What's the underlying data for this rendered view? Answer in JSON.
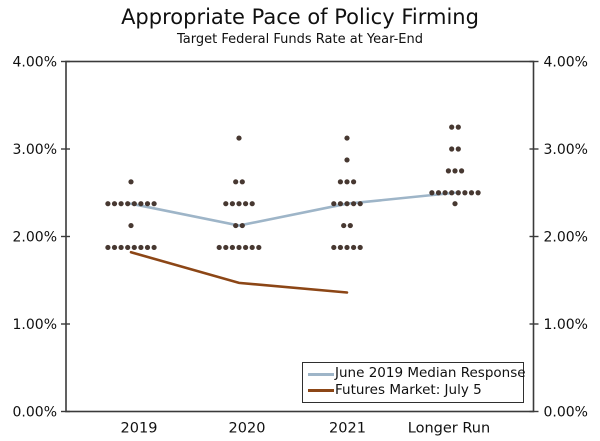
{
  "chart_data": {
    "type": "scatter",
    "title": "Appropriate Pace of Policy Firming",
    "subtitle": "Target Federal Funds Rate at Year-End",
    "categories": [
      "2019",
      "2020",
      "2021",
      "Longer Run"
    ],
    "ylim": [
      0,
      4
    ],
    "ytick_values": [
      0,
      1,
      2,
      3,
      4
    ],
    "ytick_labels": [
      "0.00%",
      "1.00%",
      "2.00%",
      "3.00%",
      "4.00%"
    ],
    "grid": false,
    "legend_position": "inside-bottom-right",
    "dot_color": "#473831",
    "frame_color": "#3a3a3a",
    "dots": [
      {
        "category": "2019",
        "rate": 2.625,
        "count": 1
      },
      {
        "category": "2019",
        "rate": 2.375,
        "count": 8
      },
      {
        "category": "2019",
        "rate": 2.125,
        "count": 1
      },
      {
        "category": "2019",
        "rate": 1.875,
        "count": 8
      },
      {
        "category": "2020",
        "rate": 3.125,
        "count": 1
      },
      {
        "category": "2020",
        "rate": 2.625,
        "count": 2
      },
      {
        "category": "2020",
        "rate": 2.375,
        "count": 5
      },
      {
        "category": "2020",
        "rate": 2.125,
        "count": 2
      },
      {
        "category": "2020",
        "rate": 1.875,
        "count": 7
      },
      {
        "category": "2021",
        "rate": 3.125,
        "count": 1
      },
      {
        "category": "2021",
        "rate": 2.875,
        "count": 1
      },
      {
        "category": "2021",
        "rate": 2.625,
        "count": 3
      },
      {
        "category": "2021",
        "rate": 2.375,
        "count": 5
      },
      {
        "category": "2021",
        "rate": 2.125,
        "count": 2
      },
      {
        "category": "2021",
        "rate": 1.875,
        "count": 5
      },
      {
        "category": "Longer Run",
        "rate": 3.25,
        "count": 2
      },
      {
        "category": "Longer Run",
        "rate": 3.0,
        "count": 2
      },
      {
        "category": "Longer Run",
        "rate": 2.75,
        "count": 3
      },
      {
        "category": "Longer Run",
        "rate": 2.5,
        "count": 8
      },
      {
        "category": "Longer Run",
        "rate": 2.375,
        "count": 1
      }
    ],
    "series": [
      {
        "name": "June 2019 Median Response",
        "x": [
          "2019",
          "2020",
          "2021",
          "Longer Run"
        ],
        "values": [
          2.375,
          2.125,
          2.375,
          2.5
        ],
        "color": "#9EB5C8"
      },
      {
        "name": "Futures Market: July 5",
        "x": [
          "2019",
          "2020",
          "2021"
        ],
        "values": [
          1.82,
          1.47,
          1.36
        ],
        "color": "#8C4616"
      }
    ]
  }
}
